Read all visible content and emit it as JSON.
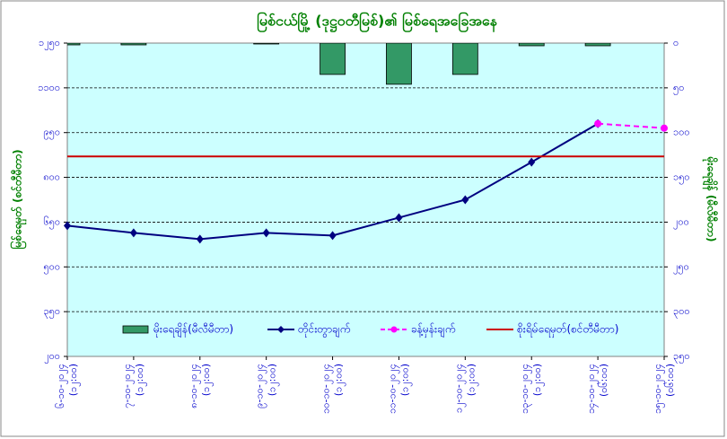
{
  "chart_data": {
    "type": "line",
    "title": "မြစ်ငယ်မြို့ (ဒုဋ္ဌဝတီမြစ်)၏ မြစ်ရေအခြေအနေ",
    "y_label": "မြစ်ရေမှတ် (စင်တီမီတာ)",
    "y2_label": "မိုးရေချိန် (မီလီမီတာ)",
    "categories": [
      "၆-၁၀-၂၀၂၄ (၁၂:၀၀)",
      "၇-၁၀-၂၀၂၄ (၁၂:၀၀)",
      "၈-၁၀-၂၀၂၄ (၁၂:၀၀)",
      "၉-၁၀-၂၀၂၄ (၁၂:၀၀)",
      "၁၀-၁၀-၂၀၂၄ (၁၂:၀၀)",
      "၁၁-၁၀-၂၀၂၄ (၁၂:၀၀)",
      "၁၂-၁၀-၂၀၂၄ (၁၂:၀၀)",
      "၁၃-၁၀-၂၀၂၄ (၁၂:၀၀)",
      "၁၄-၁၀-၂၀၂၄ (၀၆:၀၀)",
      "၁၅-၁၀-၂၀၂၄ (၀၆:၀၀)"
    ],
    "series": [
      {
        "name": "မိုးရေချိန်(မီလီမီတာ)",
        "type": "bar",
        "axis": "y2",
        "color": "#339966",
        "values": [
          2,
          2,
          0,
          1,
          35,
          46,
          35,
          3,
          3,
          0
        ]
      },
      {
        "name": "တိုင်းတွာချက်",
        "type": "line",
        "color": "#000080",
        "marker": "diamond",
        "values": [
          638,
          614,
          593,
          614,
          605,
          665,
          725,
          851,
          980,
          null
        ]
      },
      {
        "name": "ခန့်မှန်းချက်",
        "type": "line",
        "color": "#ff00ff",
        "dashed": true,
        "marker": "circle",
        "values": [
          null,
          null,
          null,
          null,
          null,
          null,
          null,
          null,
          980,
          965
        ]
      },
      {
        "name": "စိုးရိမ်ရေမှတ်(စင်တီမီတာ)",
        "type": "hline",
        "color": "#cc0000",
        "value": 870
      }
    ],
    "ylim": [
      200,
      1250
    ],
    "yticks": [
      {
        "value": 200,
        "label": "၂၀၀"
      },
      {
        "value": 350,
        "label": "၃၅၀"
      },
      {
        "value": 500,
        "label": "၅၀၀"
      },
      {
        "value": 650,
        "label": "၆၅၀"
      },
      {
        "value": 800,
        "label": "၈၀၀"
      },
      {
        "value": 950,
        "label": "၉၅၀"
      },
      {
        "value": 1100,
        "label": "၁၁၀၀"
      },
      {
        "value": 1250,
        "label": "၁၂၅၀"
      }
    ],
    "y2lim": [
      0,
      350
    ],
    "y2_inverted": true,
    "y2ticks": [
      {
        "value": 0,
        "label": "၀"
      },
      {
        "value": 50,
        "label": "၅၀"
      },
      {
        "value": 100,
        "label": "၁၀၀"
      },
      {
        "value": 150,
        "label": "၁၅၀"
      },
      {
        "value": 200,
        "label": "၂၀၀"
      },
      {
        "value": 250,
        "label": "၂၅၀"
      },
      {
        "value": 300,
        "label": "၃၀၀"
      },
      {
        "value": 350,
        "label": "၃၅၀"
      }
    ],
    "grid": true,
    "legend": "bottom"
  }
}
